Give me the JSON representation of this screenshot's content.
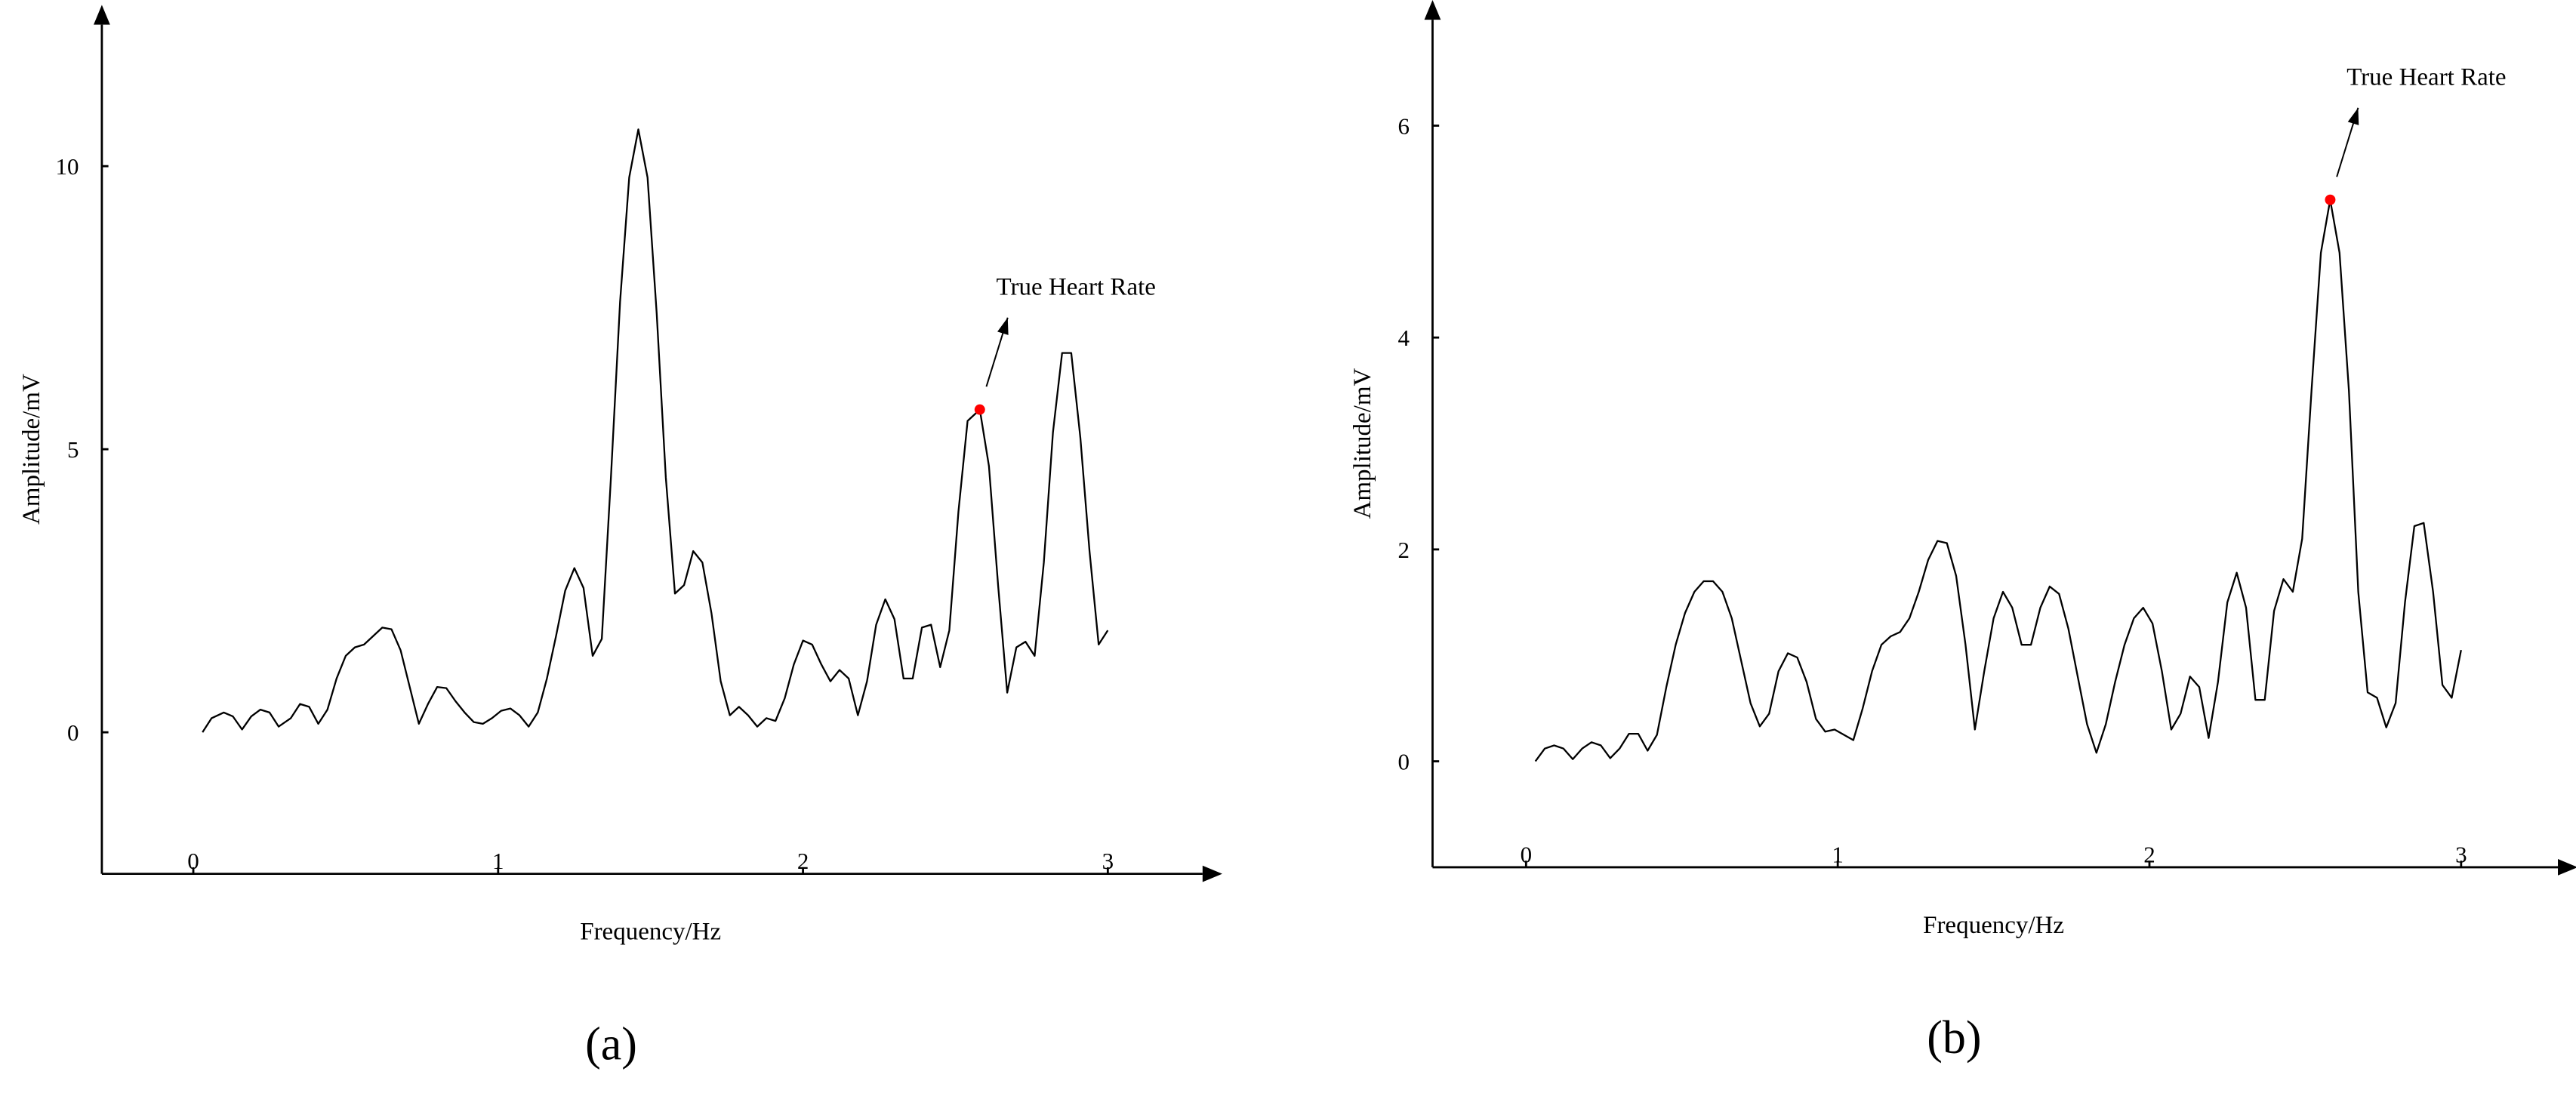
{
  "chart_data": [
    {
      "type": "line",
      "color": "#000000",
      "xlabel": "Frequency/Hz",
      "ylabel": "Amplitude/mV",
      "panel_label": "(a)",
      "xlim": [
        -0.3,
        3.3
      ],
      "ylim": [
        -2.5,
        12.5
      ],
      "xticks": [
        0,
        1,
        2,
        3
      ],
      "yticks": [
        0,
        5,
        10
      ],
      "x": [
        0.03,
        0.06,
        0.1,
        0.13,
        0.16,
        0.19,
        0.22,
        0.25,
        0.28,
        0.32,
        0.35,
        0.38,
        0.41,
        0.44,
        0.47,
        0.5,
        0.53,
        0.56,
        0.59,
        0.62,
        0.65,
        0.68,
        0.71,
        0.74,
        0.77,
        0.8,
        0.83,
        0.86,
        0.89,
        0.92,
        0.95,
        0.98,
        1.01,
        1.04,
        1.07,
        1.1,
        1.13,
        1.16,
        1.19,
        1.22,
        1.25,
        1.28,
        1.31,
        1.34,
        1.37,
        1.4,
        1.43,
        1.46,
        1.49,
        1.52,
        1.55,
        1.58,
        1.61,
        1.64,
        1.67,
        1.7,
        1.73,
        1.76,
        1.79,
        1.82,
        1.85,
        1.88,
        1.91,
        1.94,
        1.97,
        2.0,
        2.03,
        2.06,
        2.09,
        2.12,
        2.15,
        2.18,
        2.21,
        2.24,
        2.27,
        2.3,
        2.33,
        2.36,
        2.39,
        2.42,
        2.45,
        2.48,
        2.51,
        2.54,
        2.58,
        2.61,
        2.64,
        2.67,
        2.7,
        2.73,
        2.76,
        2.79,
        2.82,
        2.85,
        2.88,
        2.91,
        2.94,
        2.97,
        3.0
      ],
      "values": [
        0,
        0.25,
        0.35,
        0.28,
        0.05,
        0.28,
        0.4,
        0.35,
        0.1,
        0.25,
        0.5,
        0.45,
        0.15,
        0.4,
        0.95,
        1.35,
        1.5,
        1.55,
        1.7,
        1.85,
        1.82,
        1.45,
        0.8,
        0.15,
        0.5,
        0.8,
        0.78,
        0.55,
        0.35,
        0.18,
        0.15,
        0.25,
        0.38,
        0.42,
        0.3,
        0.1,
        0.35,
        0.95,
        1.7,
        2.5,
        2.9,
        2.55,
        1.35,
        1.65,
        4.5,
        7.6,
        9.8,
        10.65,
        9.8,
        7.4,
        4.5,
        2.45,
        2.6,
        3.2,
        3.0,
        2.1,
        0.9,
        0.3,
        0.45,
        0.3,
        0.1,
        0.25,
        0.2,
        0.6,
        1.2,
        1.62,
        1.55,
        1.2,
        0.9,
        1.1,
        0.95,
        0.3,
        0.9,
        1.9,
        2.35,
        2.0,
        0.95,
        0.95,
        1.85,
        1.9,
        1.15,
        1.8,
        3.9,
        5.5,
        5.7,
        4.7,
        2.6,
        0.7,
        1.5,
        1.6,
        1.35,
        3.0,
        5.3,
        6.7,
        6.7,
        5.2,
        3.2,
        1.55,
        1.8
      ],
      "annotation": {
        "text": "True Heart Rate",
        "x": 2.58,
        "y": 5.7,
        "color": "#ff0000"
      }
    },
    {
      "type": "line",
      "color": "#000000",
      "xlabel": "Frequency/Hz",
      "ylabel": "Amplitude/mV",
      "panel_label": "(b)",
      "xlim": [
        -0.3,
        3.3
      ],
      "ylim": [
        -1,
        7
      ],
      "xticks": [
        0,
        1,
        2,
        3
      ],
      "yticks": [
        0,
        2,
        4,
        6
      ],
      "x": [
        0.03,
        0.06,
        0.09,
        0.12,
        0.15,
        0.18,
        0.21,
        0.24,
        0.27,
        0.3,
        0.33,
        0.36,
        0.39,
        0.42,
        0.45,
        0.48,
        0.51,
        0.54,
        0.57,
        0.6,
        0.63,
        0.66,
        0.69,
        0.72,
        0.75,
        0.78,
        0.81,
        0.84,
        0.87,
        0.9,
        0.93,
        0.96,
        0.99,
        1.02,
        1.05,
        1.08,
        1.11,
        1.14,
        1.17,
        1.2,
        1.23,
        1.26,
        1.29,
        1.32,
        1.35,
        1.38,
        1.41,
        1.44,
        1.47,
        1.5,
        1.53,
        1.56,
        1.59,
        1.62,
        1.65,
        1.68,
        1.71,
        1.74,
        1.77,
        1.8,
        1.83,
        1.86,
        1.89,
        1.92,
        1.95,
        1.98,
        2.01,
        2.04,
        2.07,
        2.1,
        2.13,
        2.16,
        2.19,
        2.22,
        2.25,
        2.28,
        2.31,
        2.34,
        2.37,
        2.4,
        2.43,
        2.46,
        2.49,
        2.52,
        2.55,
        2.58,
        2.61,
        2.64,
        2.67,
        2.7,
        2.73,
        2.76,
        2.79,
        2.82,
        2.85,
        2.88,
        2.91,
        2.94,
        2.97,
        3.0
      ],
      "values": [
        0,
        0.12,
        0.15,
        0.12,
        0.02,
        0.12,
        0.18,
        0.15,
        0.03,
        0.12,
        0.26,
        0.26,
        0.1,
        0.25,
        0.7,
        1.1,
        1.4,
        1.6,
        1.7,
        1.7,
        1.6,
        1.35,
        0.95,
        0.55,
        0.33,
        0.45,
        0.85,
        1.02,
        0.98,
        0.75,
        0.4,
        0.28,
        0.3,
        0.25,
        0.2,
        0.5,
        0.85,
        1.1,
        1.18,
        1.22,
        1.35,
        1.6,
        1.9,
        2.08,
        2.06,
        1.75,
        1.1,
        0.3,
        0.85,
        1.35,
        1.6,
        1.45,
        1.1,
        1.1,
        1.45,
        1.65,
        1.58,
        1.25,
        0.8,
        0.35,
        0.08,
        0.35,
        0.75,
        1.1,
        1.35,
        1.45,
        1.3,
        0.85,
        0.3,
        0.45,
        0.8,
        0.7,
        0.22,
        0.75,
        1.5,
        1.78,
        1.45,
        0.58,
        0.58,
        1.42,
        1.72,
        1.6,
        2.1,
        3.5,
        4.8,
        5.3,
        4.8,
        3.5,
        1.6,
        0.65,
        0.6,
        0.32,
        0.55,
        1.5,
        2.22,
        2.25,
        1.6,
        0.72,
        0.6,
        1.05
      ],
      "annotation": {
        "text": "True Heart Rate",
        "x": 2.58,
        "y": 5.3,
        "color": "#ff0000"
      }
    }
  ]
}
